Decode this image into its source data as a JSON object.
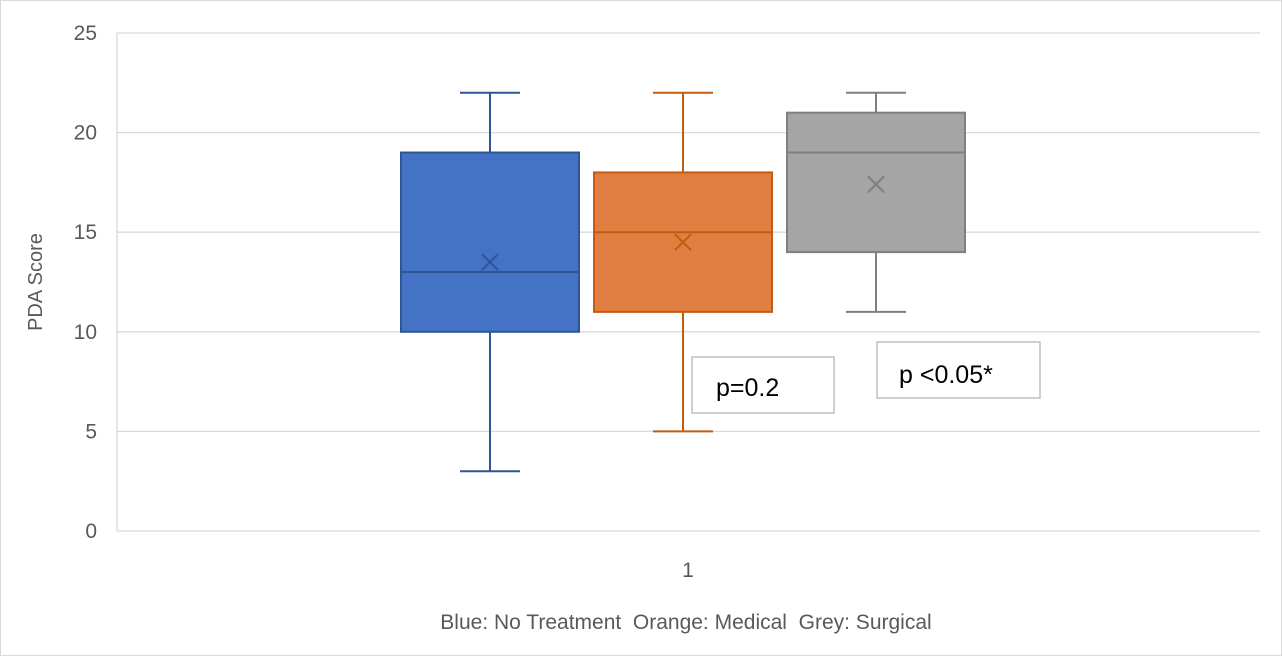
{
  "chart_data": {
    "type": "boxplot",
    "xlabel": "Blue: No Treatment  Orange: Medical  Grey: Surgical",
    "ylabel": "PDA Score",
    "ylim": [
      0,
      25
    ],
    "yticks": [
      "0",
      "5",
      "10",
      "15",
      "20",
      "25"
    ],
    "categories": [
      "1"
    ],
    "grid": true,
    "series": [
      {
        "color": "#4472c4",
        "min": 3,
        "q1": 10,
        "median": 13,
        "q3": 19,
        "max": 22,
        "mean": 13.5
      },
      {
        "color": "#e07f41",
        "min": 5,
        "q1": 11,
        "median": 15,
        "q3": 18,
        "max": 22,
        "mean": 14.5
      },
      {
        "color": "#a5a5a5",
        "min": 11,
        "q1": 14,
        "median": 19,
        "q3": 21,
        "max": 22,
        "mean": 17.4
      }
    ],
    "annotations": [
      {
        "text": "p=0.2"
      },
      {
        "text": "p <0.05*"
      }
    ]
  },
  "colors": {
    "grid": "#d9d9d9",
    "axis_text": "#595959",
    "blue_stroke": "#2f5597",
    "orange_stroke": "#c55a11",
    "grey_stroke": "#7f7f7f"
  }
}
